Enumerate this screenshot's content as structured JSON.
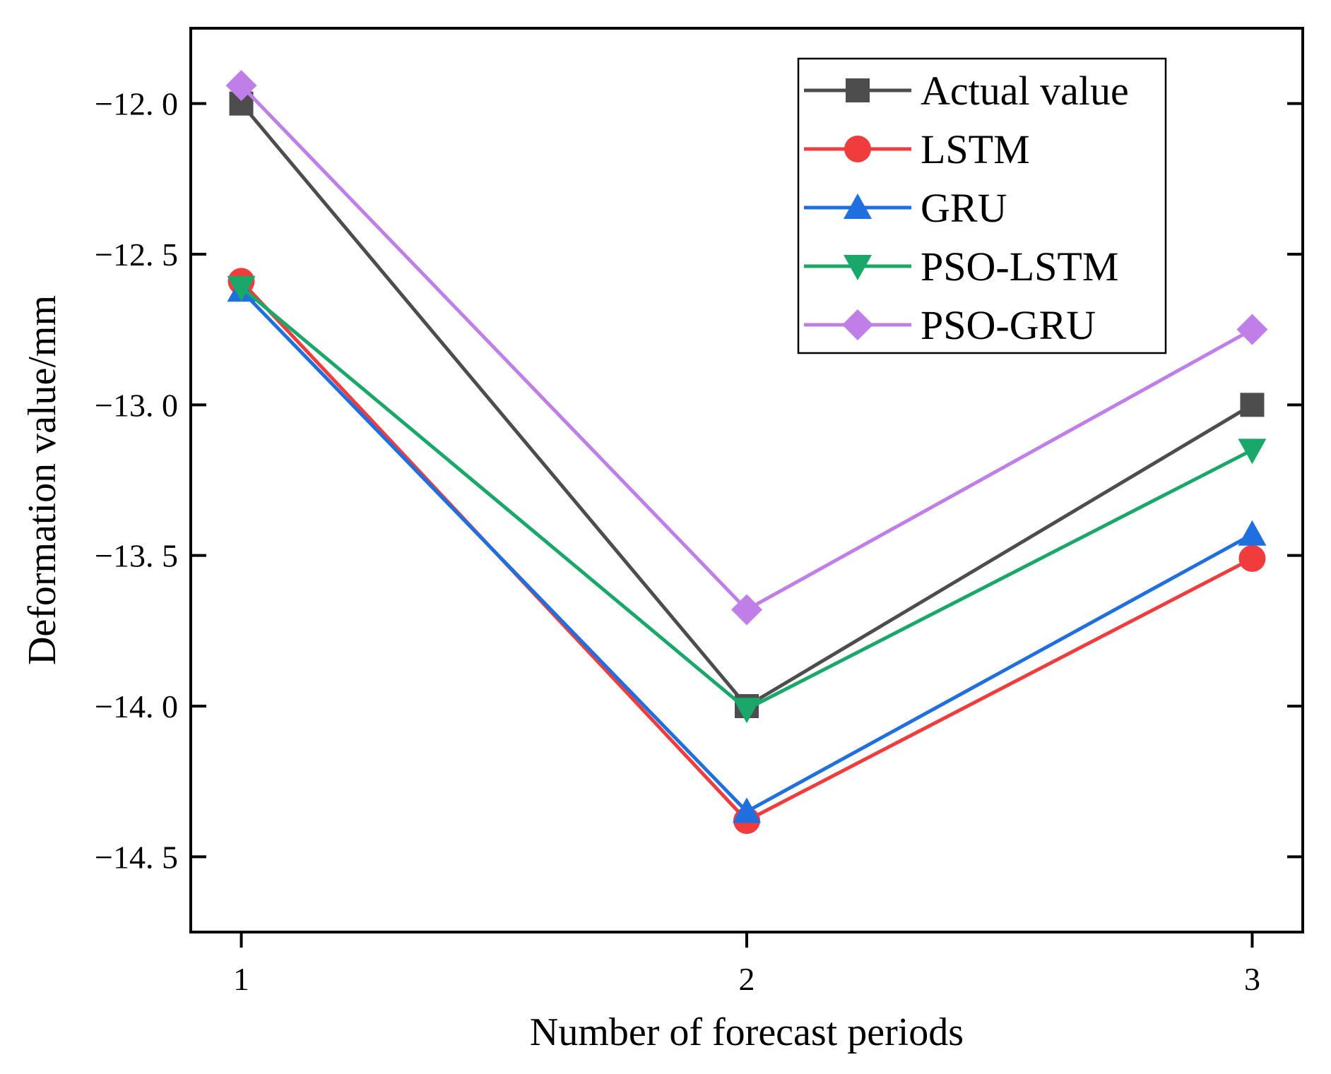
{
  "chart_data": {
    "type": "line",
    "title": "",
    "xlabel": "Number of forecast periods",
    "ylabel": "Deformation value/mm",
    "x": [
      1,
      2,
      3
    ],
    "x_ticks": [
      1,
      2,
      3
    ],
    "x_tick_labels": [
      "1",
      "2",
      "3"
    ],
    "xlim": [
      0.9,
      3.1
    ],
    "y_ticks": [
      -12.0,
      -12.5,
      -13.0,
      -13.5,
      -14.0,
      -14.5
    ],
    "y_tick_labels": [
      "−12. 0",
      "−12. 5",
      "−13. 0",
      "−13. 5",
      "−14. 0",
      "−14. 5"
    ],
    "ylim": [
      -14.75,
      -11.75
    ],
    "grid": false,
    "legend_position": "top-right",
    "series": [
      {
        "name": "Actual value",
        "values": [
          -12.0,
          -14.0,
          -13.0
        ],
        "color": "#4d4d4d",
        "marker": "square"
      },
      {
        "name": "LSTM",
        "values": [
          -12.59,
          -14.38,
          -13.51
        ],
        "color": "#f03c3c",
        "marker": "circle"
      },
      {
        "name": "GRU",
        "values": [
          -12.62,
          -14.35,
          -13.43
        ],
        "color": "#1f6fe0",
        "marker": "triangle-up"
      },
      {
        "name": "PSO-LSTM",
        "values": [
          -12.61,
          -14.01,
          -13.15
        ],
        "color": "#1aa86a",
        "marker": "triangle-down"
      },
      {
        "name": "PSO-GRU",
        "values": [
          -11.94,
          -13.68,
          -12.75
        ],
        "color": "#c07ee8",
        "marker": "diamond"
      }
    ]
  }
}
